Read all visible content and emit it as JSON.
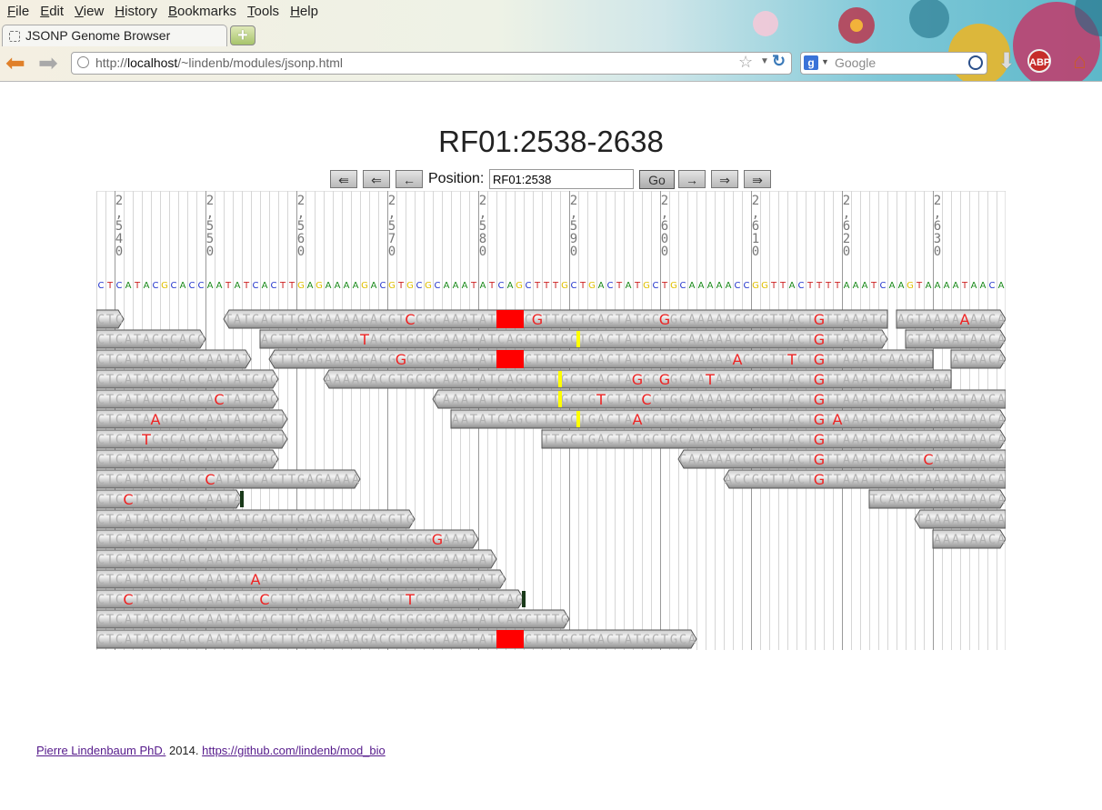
{
  "browser": {
    "menus": [
      "File",
      "Edit",
      "View",
      "History",
      "Bookmarks",
      "Tools",
      "Help"
    ],
    "tab_title": "JSONP Genome Browser",
    "url_prefix": "http://",
    "url_host": "localhost",
    "url_path": "/~lindenb/modules/jsonp.html",
    "search_placeholder": "Google",
    "icons": [
      "back-arrow-icon",
      "forward-arrow-icon",
      "globe-icon",
      "star-icon",
      "reload-icon",
      "google-icon",
      "magnifier-icon",
      "download-icon",
      "adblock-icon",
      "home-icon"
    ],
    "abp_label": "ABP"
  },
  "page": {
    "title": "RF01:2538-2638",
    "buttons": [
      "⇚",
      "⇐",
      "←",
      "→",
      "⇒",
      "⇛"
    ],
    "position_label": "Position:",
    "position_value": "RF01:2538",
    "go_label": "Go"
  },
  "genome": {
    "start": 2538,
    "end": 2638,
    "reference": "CTCATACGCACCAATATCACTTGAGAAAAGACGTGCGCAAATATCAGCTTTGCTGACTATGCTGCAAAAACCGGTTACTTTTAAATCAAGTAAAATAACA",
    "ticks": [
      "2,540",
      "2,550",
      "2,560",
      "2,570",
      "2,580",
      "2,590",
      "2,600",
      "2,610",
      "2,620",
      "2,630"
    ],
    "base_colors": {
      "A": "#1a8a1a",
      "C": "#2233cc",
      "G": "#e0c000",
      "T": "#cc2222"
    },
    "mismatch_color": "#ee2222",
    "deletion_color": "#ff0000",
    "insertion_color": "#ffff00",
    "reads": [
      {
        "row": 0,
        "start": 2538,
        "end": 2541,
        "strand": "+",
        "mm": [],
        "del": []
      },
      {
        "row": 0,
        "start": 2552,
        "end": 2625,
        "strand": "-",
        "mm": [
          [
            2572,
            "C"
          ],
          [
            2586,
            "G"
          ],
          [
            2600,
            "G"
          ],
          [
            2617,
            "G"
          ]
        ],
        "del": [
          [
            2582,
            3
          ]
        ]
      },
      {
        "row": 0,
        "start": 2626,
        "end": 2638,
        "strand": "+",
        "mm": [
          [
            2633,
            "A"
          ]
        ],
        "del": []
      },
      {
        "row": 1,
        "start": 2538,
        "end": 2550,
        "strand": "+",
        "mm": [],
        "del": []
      },
      {
        "row": 1,
        "start": 2556,
        "end": 2625,
        "strand": "+",
        "mm": [
          [
            2567,
            "T"
          ],
          [
            2617,
            "G"
          ]
        ],
        "del": [],
        "ins": [
          2591
        ]
      },
      {
        "row": 1,
        "start": 2627,
        "end": 2638,
        "strand": "+",
        "mm": [],
        "del": []
      },
      {
        "row": 2,
        "start": 2538,
        "end": 2555,
        "strand": "+",
        "mm": [],
        "del": []
      },
      {
        "row": 2,
        "start": 2557,
        "end": 2630,
        "strand": "-",
        "mm": [
          [
            2571,
            "G"
          ],
          [
            2608,
            "A"
          ],
          [
            2614,
            "T"
          ],
          [
            2617,
            "G"
          ]
        ],
        "del": [
          [
            2582,
            3
          ]
        ]
      },
      {
        "row": 2,
        "start": 2632,
        "end": 2638,
        "strand": "+",
        "mm": [],
        "del": []
      },
      {
        "row": 3,
        "start": 2538,
        "end": 2558,
        "strand": "+",
        "mm": [],
        "del": []
      },
      {
        "row": 3,
        "start": 2563,
        "end": 2632,
        "strand": "-",
        "mm": [
          [
            2597,
            "G"
          ],
          [
            2600,
            "G"
          ],
          [
            2605,
            "T"
          ],
          [
            2617,
            "G"
          ]
        ],
        "del": [],
        "ins": [
          2589
        ]
      },
      {
        "row": 4,
        "start": 2538,
        "end": 2558,
        "strand": "+",
        "mm": [
          [
            2551,
            "C"
          ]
        ],
        "del": []
      },
      {
        "row": 4,
        "start": 2575,
        "end": 2638,
        "strand": "-",
        "mm": [
          [
            2593,
            "T"
          ],
          [
            2598,
            "C"
          ],
          [
            2617,
            "G"
          ]
        ],
        "del": [],
        "ins": [
          2589
        ]
      },
      {
        "row": 5,
        "start": 2538,
        "end": 2559,
        "strand": "+",
        "mm": [
          [
            2544,
            "A"
          ]
        ],
        "del": []
      },
      {
        "row": 5,
        "start": 2577,
        "end": 2638,
        "strand": "+",
        "mm": [
          [
            2597,
            "A"
          ],
          [
            2617,
            "G"
          ],
          [
            2619,
            "A"
          ]
        ],
        "del": [],
        "ins": [
          2591
        ]
      },
      {
        "row": 6,
        "start": 2538,
        "end": 2559,
        "strand": "+",
        "mm": [
          [
            2543,
            "T"
          ]
        ],
        "del": []
      },
      {
        "row": 6,
        "start": 2587,
        "end": 2638,
        "strand": "+",
        "mm": [
          [
            2617,
            "G"
          ]
        ],
        "del": []
      },
      {
        "row": 7,
        "start": 2538,
        "end": 2558,
        "strand": "+",
        "mm": [],
        "del": []
      },
      {
        "row": 7,
        "start": 2602,
        "end": 2638,
        "strand": "-",
        "mm": [
          [
            2617,
            "G"
          ],
          [
            2629,
            "C"
          ]
        ],
        "del": []
      },
      {
        "row": 8,
        "start": 2538,
        "end": 2567,
        "strand": "+",
        "mm": [
          [
            2550,
            "C"
          ]
        ],
        "del": []
      },
      {
        "row": 8,
        "start": 2607,
        "end": 2638,
        "strand": "-",
        "mm": [
          [
            2617,
            "G"
          ]
        ],
        "del": []
      },
      {
        "row": 9,
        "start": 2538,
        "end": 2554,
        "strand": "+",
        "mm": [
          [
            2541,
            "C"
          ]
        ],
        "del": [],
        "clip": true
      },
      {
        "row": 9,
        "start": 2623,
        "end": 2638,
        "strand": "+",
        "mm": [],
        "del": []
      },
      {
        "row": 10,
        "start": 2538,
        "end": 2573,
        "strand": "+",
        "mm": [],
        "del": []
      },
      {
        "row": 10,
        "start": 2628,
        "end": 2638,
        "strand": "-",
        "mm": [],
        "del": []
      },
      {
        "row": 11,
        "start": 2538,
        "end": 2580,
        "strand": "+",
        "mm": [
          [
            2575,
            "G"
          ]
        ],
        "del": []
      },
      {
        "row": 11,
        "start": 2630,
        "end": 2638,
        "strand": "+",
        "mm": [],
        "del": []
      },
      {
        "row": 12,
        "start": 2538,
        "end": 2582,
        "strand": "+",
        "mm": [],
        "del": []
      },
      {
        "row": 13,
        "start": 2538,
        "end": 2583,
        "strand": "+",
        "mm": [
          [
            2555,
            "A"
          ]
        ],
        "del": []
      },
      {
        "row": 14,
        "start": 2538,
        "end": 2585,
        "strand": "+",
        "mm": [
          [
            2541,
            "C"
          ],
          [
            2556,
            "C"
          ],
          [
            2572,
            "T"
          ]
        ],
        "del": [],
        "clip": true
      },
      {
        "row": 15,
        "start": 2538,
        "end": 2590,
        "strand": "+",
        "mm": [],
        "del": []
      },
      {
        "row": 16,
        "start": 2538,
        "end": 2604,
        "strand": "+",
        "mm": [],
        "del": [
          [
            2582,
            3
          ]
        ]
      }
    ]
  },
  "footer": {
    "author": "Pierre Lindenbaum PhD.",
    "year": " 2014. ",
    "link": "https://github.com/lindenb/mod_bio"
  }
}
